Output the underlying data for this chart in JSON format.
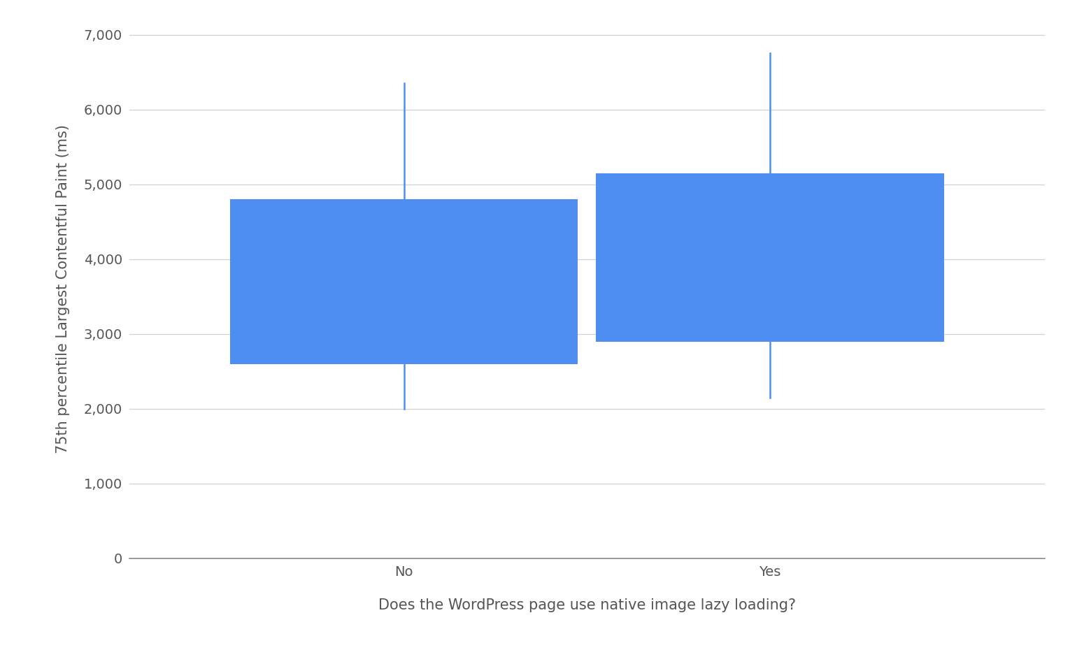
{
  "categories": [
    "No",
    "Yes"
  ],
  "boxes": [
    {
      "p10": 2000,
      "p25": 2600,
      "p75": 4800,
      "p90": 6350
    },
    {
      "p10": 2150,
      "p25": 2900,
      "p75": 5150,
      "p90": 6750
    }
  ],
  "box_color": "#4d8ef0",
  "whisker_color": "#4d8ef0",
  "box_width": 0.38,
  "ylabel": "75th percentile Largest Contentful Paint (ms)",
  "xlabel": "Does the WordPress page use native image lazy loading?",
  "ylim": [
    0,
    7200
  ],
  "yticks": [
    0,
    1000,
    2000,
    3000,
    4000,
    5000,
    6000,
    7000
  ],
  "ytick_labels": [
    "0",
    "1,000",
    "2,000",
    "3,000",
    "4,000",
    "5,000",
    "6,000",
    "7,000"
  ],
  "background_color": "#ffffff",
  "grid_color": "#d0d0d0",
  "ylabel_fontsize": 15,
  "xlabel_fontsize": 15,
  "tick_fontsize": 14,
  "x_positions": [
    0.3,
    0.7
  ],
  "xlim": [
    0.0,
    1.0
  ]
}
